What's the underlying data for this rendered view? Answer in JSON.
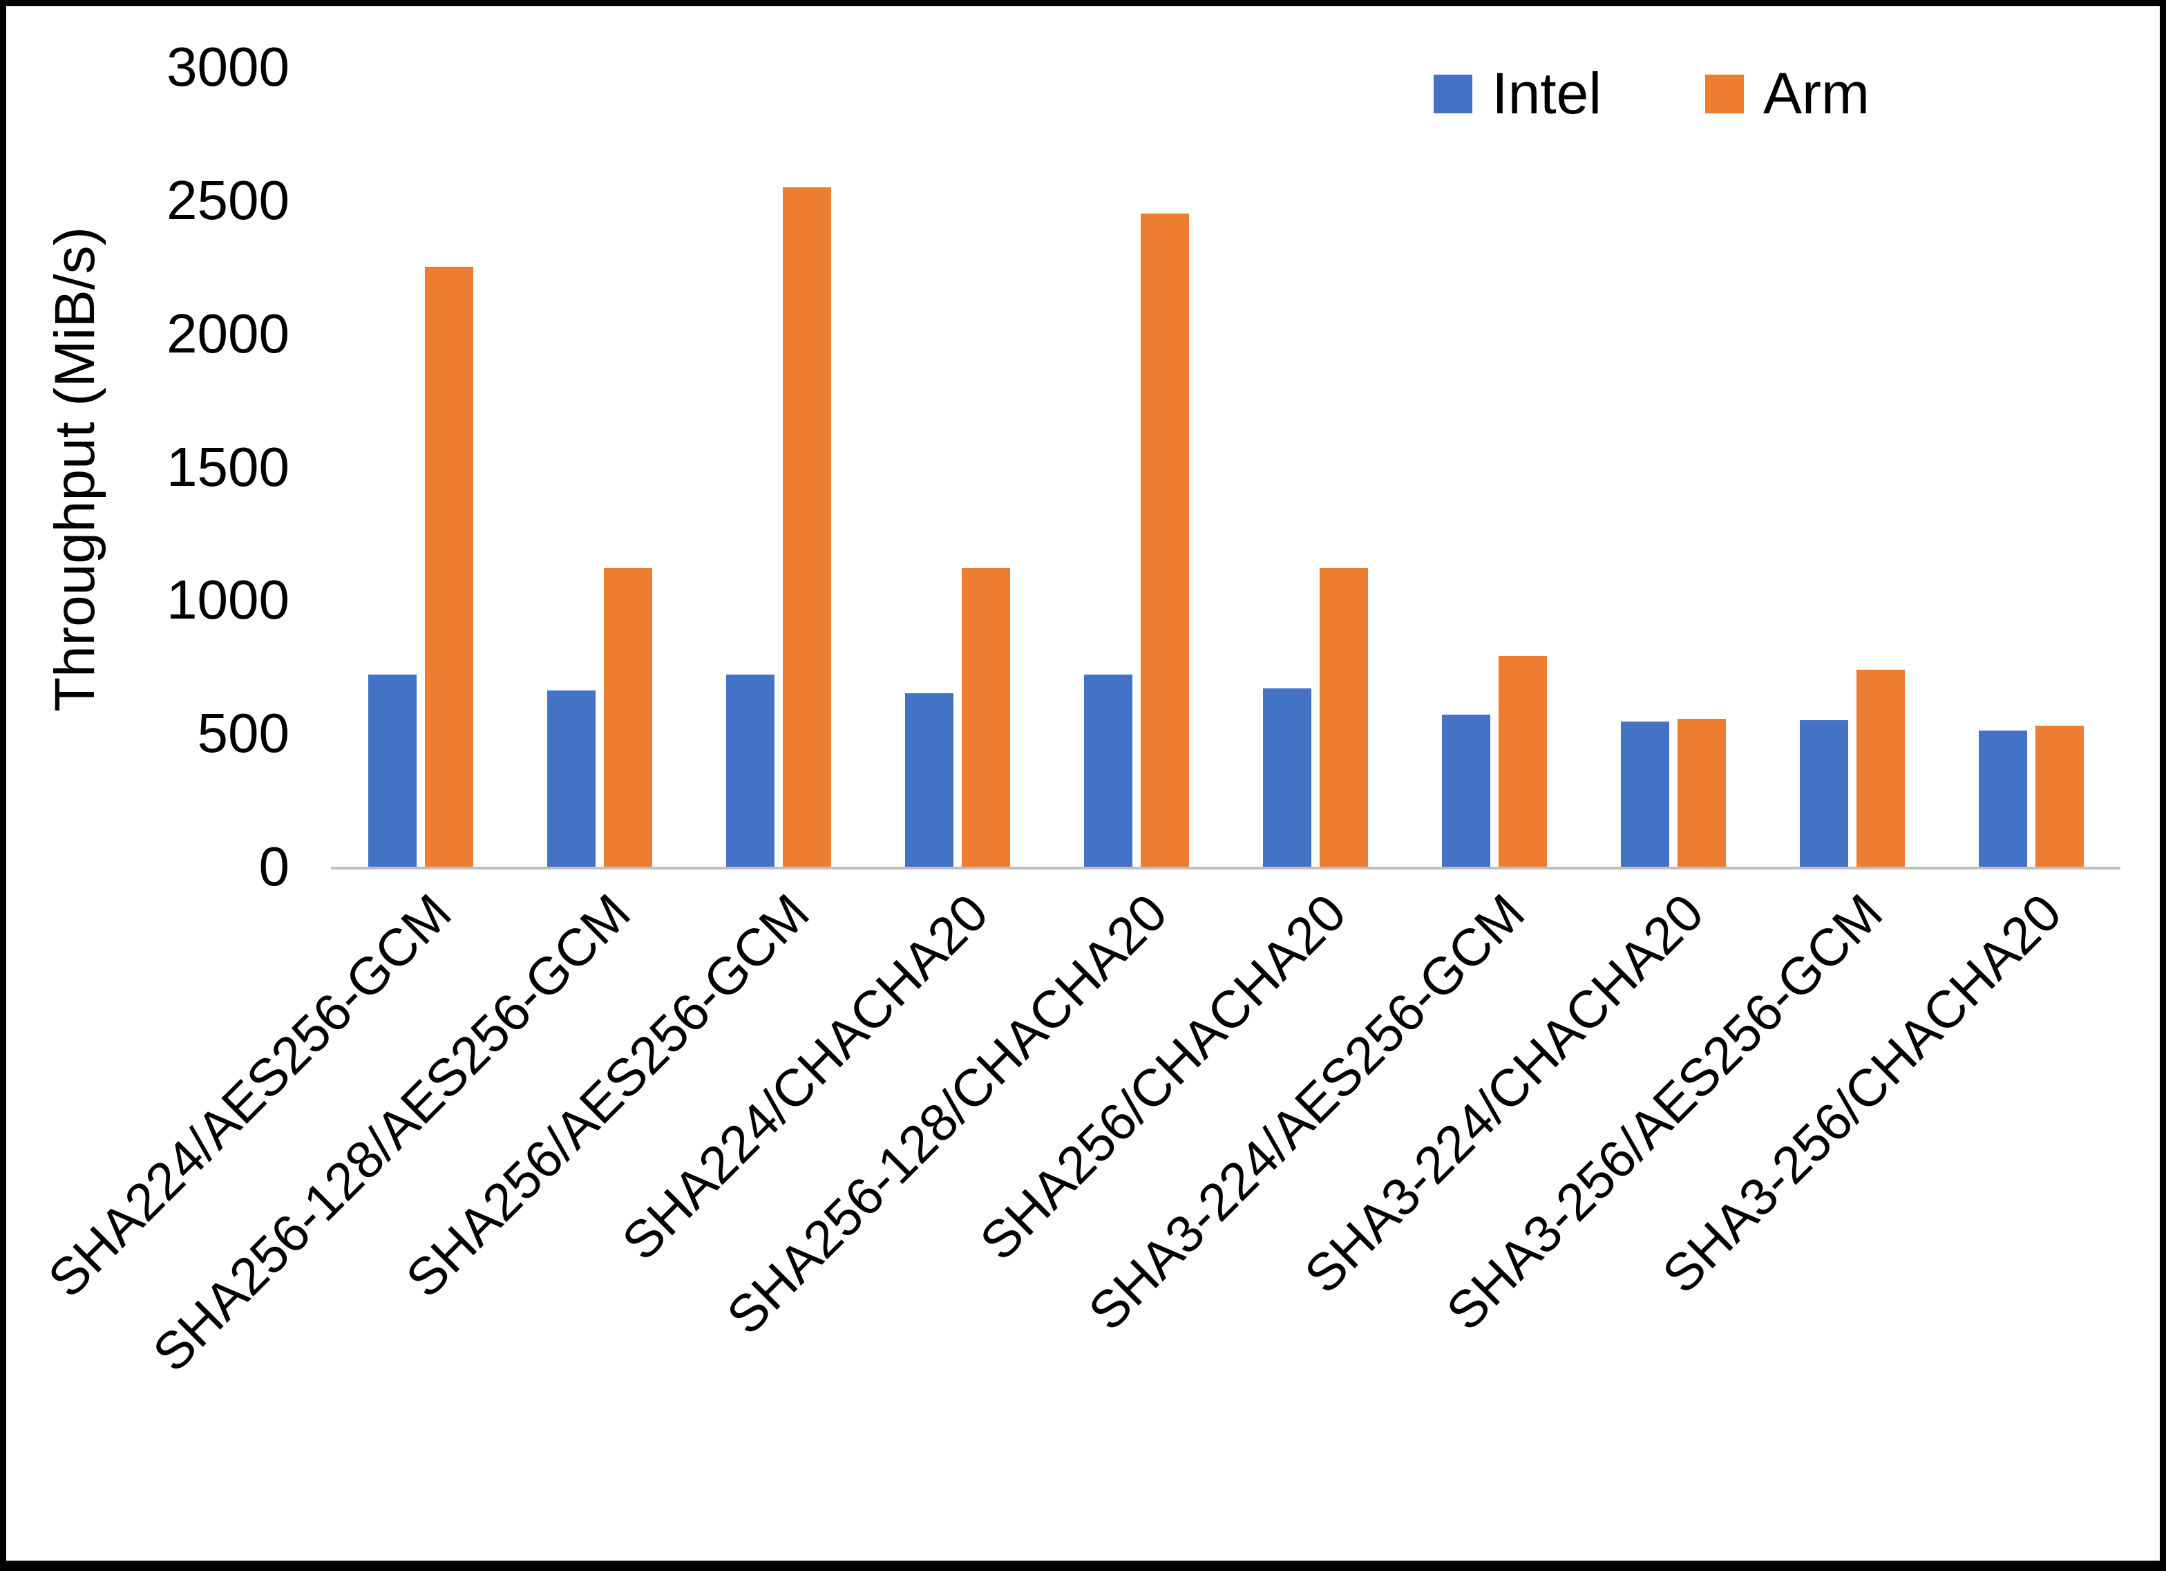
{
  "chart_data": {
    "type": "bar",
    "title": "",
    "xlabel": "",
    "ylabel": "Throughput (MiB/s)",
    "ylim": [
      0,
      3000
    ],
    "ytick_step": 500,
    "grid": false,
    "legend_position": "top-right",
    "categories": [
      "SHA224/AES256-GCM",
      "SHA256-128/AES256-GCM",
      "SHA256/AES256-GCM",
      "SHA224/CHACHA20",
      "SHA256-128/CHACHA20",
      "SHA256/CHACHA20",
      "SHA3-224/AES256-GCM",
      "SHA3-224/CHACHA20",
      "SHA3-256/AES256-GCM",
      "SHA3-256/CHACHA20"
    ],
    "series": [
      {
        "name": "Intel",
        "color": "#4472C4",
        "values": [
          720,
          660,
          720,
          650,
          720,
          670,
          570,
          545,
          550,
          510
        ]
      },
      {
        "name": "Arm",
        "color": "#ED7D31",
        "values": [
          2250,
          1120,
          2550,
          1120,
          2450,
          1120,
          790,
          555,
          740,
          530
        ]
      }
    ]
  }
}
